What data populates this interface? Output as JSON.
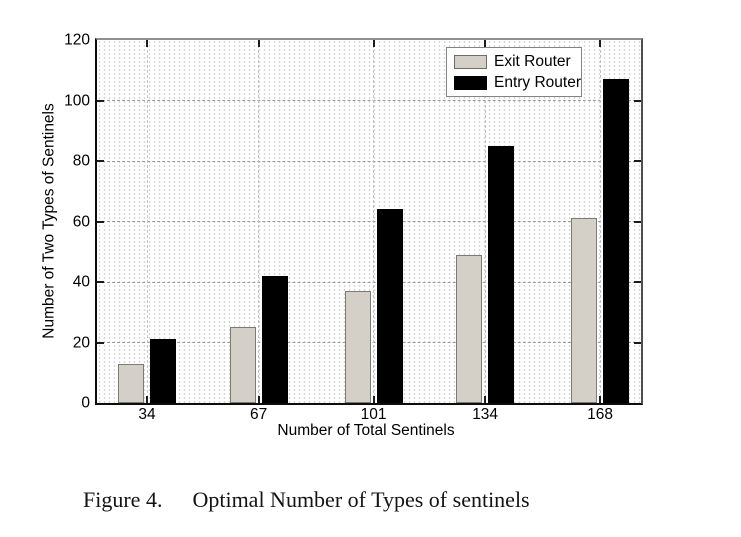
{
  "figure": {
    "caption_label": "Figure 4.",
    "caption_text": "Optimal Number of Types of sentinels"
  },
  "chart_data": {
    "type": "bar",
    "title": "",
    "xlabel": "Number of Total Sentinels",
    "ylabel": "Number of Two Types of Sentinels",
    "categories": [
      34,
      67,
      101,
      134,
      168
    ],
    "series": [
      {
        "name": "Exit Router",
        "values": [
          13,
          25,
          37,
          49,
          61
        ],
        "color": "#d4d0c8",
        "border_color": "#7c7a74"
      },
      {
        "name": "Entry Router",
        "values": [
          21,
          42,
          64,
          85,
          107
        ],
        "color": "#000000",
        "border_color": "#000000"
      }
    ],
    "ylim": [
      0,
      120
    ],
    "yticks": [
      0,
      20,
      40,
      60,
      80,
      100,
      120
    ],
    "xlim": [
      19.2,
      180.1
    ],
    "grid": "dotted minor mesh with dashed major gridlines",
    "legend_position": "top-right"
  }
}
